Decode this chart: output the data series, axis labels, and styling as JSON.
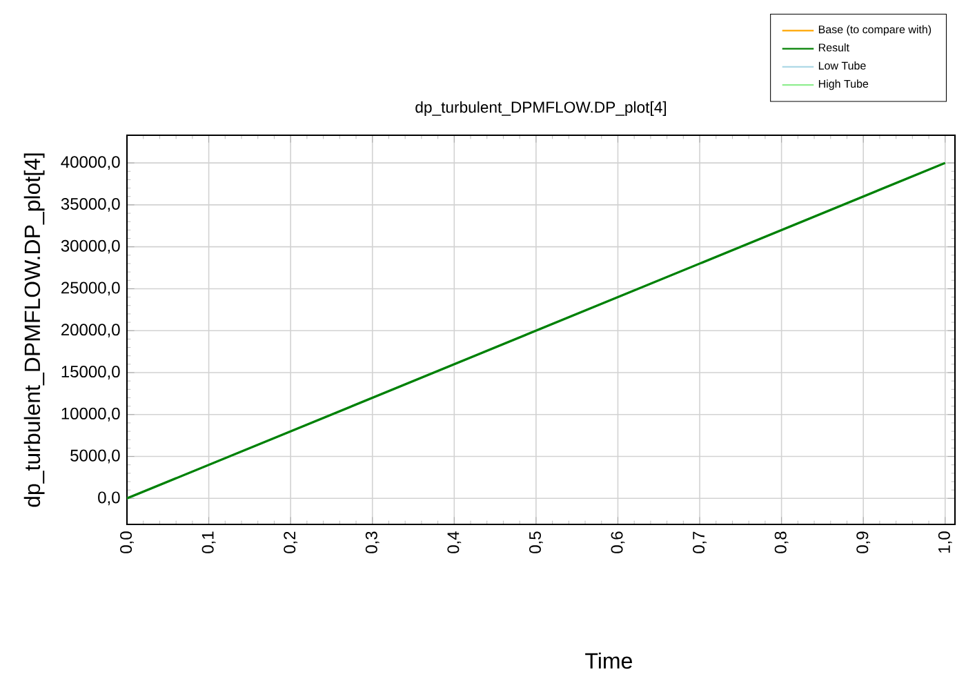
{
  "chart_data": {
    "type": "line",
    "title": "dp_turbulent_DPMFLOW.DP_plot[4]",
    "xlabel": "Time",
    "ylabel": "dp_turbulent_DPMFLOW.DP_plot[4]",
    "x": [
      0,
      1
    ],
    "series": [
      {
        "name": "Base (to compare with)",
        "color": "#ffa500",
        "values": [
          null,
          null
        ]
      },
      {
        "name": "Result",
        "color": "#008000",
        "values": [
          0,
          40000
        ]
      },
      {
        "name": "Low Tube",
        "color": "#add8e6",
        "values": [
          0,
          40000
        ]
      },
      {
        "name": "High Tube",
        "color": "#90ee90",
        "values": [
          0,
          40000
        ]
      }
    ],
    "xlim": [
      0,
      1.012
    ],
    "ylim": [
      -3100,
      43300
    ],
    "xticks": [
      {
        "value": 0,
        "label": "0,0"
      },
      {
        "value": 0.1,
        "label": "0,1"
      },
      {
        "value": 0.2,
        "label": "0,2"
      },
      {
        "value": 0.3,
        "label": "0,3"
      },
      {
        "value": 0.4,
        "label": "0,4"
      },
      {
        "value": 0.5,
        "label": "0,5"
      },
      {
        "value": 0.6,
        "label": "0,6"
      },
      {
        "value": 0.7,
        "label": "0,7"
      },
      {
        "value": 0.8,
        "label": "0,8"
      },
      {
        "value": 0.9,
        "label": "0,9"
      },
      {
        "value": 1.0,
        "label": "1,0"
      }
    ],
    "yticks": [
      {
        "value": 0,
        "label": "0,0"
      },
      {
        "value": 5000,
        "label": "5000,0"
      },
      {
        "value": 10000,
        "label": "10000,0"
      },
      {
        "value": 15000,
        "label": "15000,0"
      },
      {
        "value": 20000,
        "label": "20000,0"
      },
      {
        "value": 25000,
        "label": "25000,0"
      },
      {
        "value": 30000,
        "label": "30000,0"
      },
      {
        "value": 35000,
        "label": "35000,0"
      },
      {
        "value": 40000,
        "label": "40000,0"
      }
    ],
    "grid": true,
    "legend": "top right"
  }
}
